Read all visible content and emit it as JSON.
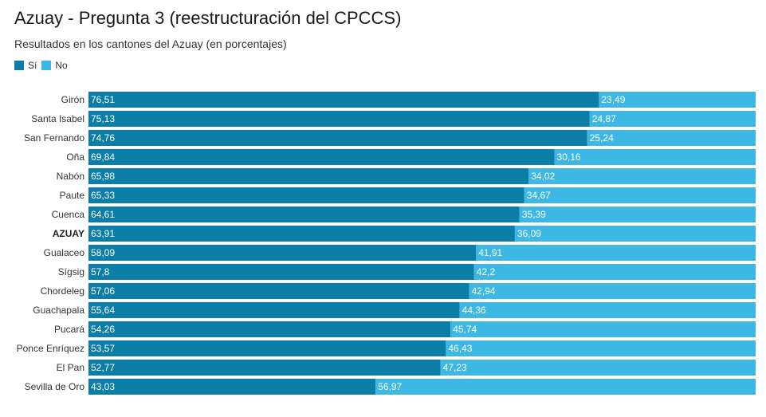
{
  "header": {
    "title": "Azuay - Pregunta 3 (reestructuración del CPCCS)",
    "subtitle": "Resultados en los cantones del Azuay (en porcentajes)"
  },
  "legend": [
    {
      "label": "Sí",
      "color": "#0b7ea8"
    },
    {
      "label": "No",
      "color": "#3db7e3"
    }
  ],
  "chart_data": {
    "type": "bar",
    "orientation": "horizontal",
    "stacked": true,
    "xlim": [
      0,
      100
    ],
    "grid": false,
    "legend_position": "top-left",
    "categories": [
      "Girón",
      "Santa Isabel",
      "San Fernando",
      "Oña",
      "Nabón",
      "Paute",
      "Cuenca",
      "AZUAY",
      "Gualaceo",
      "Sígsig",
      "Chordeleg",
      "Guachapala",
      "Pucará",
      "Ponce Enríquez",
      "El Pan",
      "Sevilla de Oro"
    ],
    "bold_categories": [
      "AZUAY"
    ],
    "series": [
      {
        "name": "Sí",
        "color": "#0b7ea8",
        "values": [
          76.51,
          75.13,
          74.76,
          69.84,
          65.98,
          65.33,
          64.61,
          63.91,
          58.09,
          57.8,
          57.06,
          55.64,
          54.26,
          53.57,
          52.77,
          43.03
        ],
        "labels": [
          "76,51",
          "75,13",
          "74,76",
          "69,84",
          "65,98",
          "65,33",
          "64,61",
          "63,91",
          "58,09",
          "57,8",
          "57,06",
          "55,64",
          "54,26",
          "53,57",
          "52,77",
          "43,03"
        ]
      },
      {
        "name": "No",
        "color": "#3db7e3",
        "values": [
          23.49,
          24.87,
          25.24,
          30.16,
          34.02,
          34.67,
          35.39,
          36.09,
          41.91,
          42.2,
          42.94,
          44.36,
          45.74,
          46.43,
          47.23,
          56.97
        ],
        "labels": [
          "23,49",
          "24,87",
          "25,24",
          "30,16",
          "34,02",
          "34,67",
          "35,39",
          "36,09",
          "41,91",
          "42,2",
          "42,94",
          "44,36",
          "45,74",
          "46,43",
          "47,23",
          "56,97"
        ]
      }
    ]
  }
}
